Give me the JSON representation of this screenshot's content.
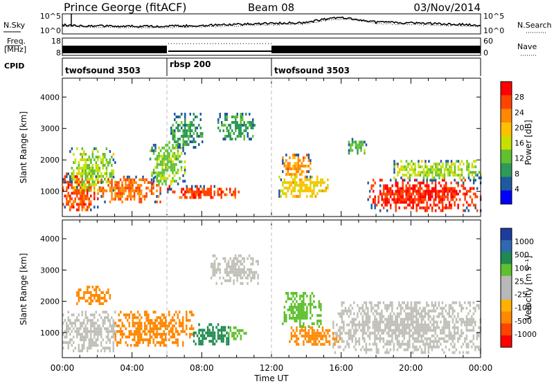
{
  "header": {
    "station": "Prince George (fitACF)",
    "beam": "Beam 08",
    "date": "03/Nov/2014"
  },
  "strips": {
    "nsky_label": "N.Sky",
    "nsky_ticks": [
      "10^5",
      "10^0"
    ],
    "nsearch_label": "N.Search",
    "freq_label_1": "Freq.",
    "freq_label_2": "[MHz]",
    "freq_ticks": [
      "18",
      "8"
    ],
    "nave_ticks": [
      "60",
      "0"
    ],
    "nave_label": "Nave",
    "cpid_label": "CPID",
    "cpid_segments": [
      {
        "label": "twofsound 3503",
        "start_h": 0,
        "end_h": 6
      },
      {
        "label": "rbsp 200",
        "start_h": 6,
        "end_h": 12
      },
      {
        "label": "twofsound 3503",
        "start_h": 12,
        "end_h": 24
      }
    ]
  },
  "axes": {
    "ylabel": "Slant Range [km]",
    "yticks": [
      "4000",
      "3000",
      "2000",
      "1000"
    ],
    "xticks": [
      "00:00",
      "04:00",
      "08:00",
      "12:00",
      "16:00",
      "20:00",
      "00:00"
    ],
    "xlabel": "Time UT"
  },
  "power_scale": {
    "label": "Power [dB]",
    "ticks": [
      "28",
      "24",
      "20",
      "16",
      "12",
      "8",
      "4"
    ],
    "colors": [
      "#ff0000",
      "#ff4400",
      "#ff8800",
      "#ffc000",
      "#c8e000",
      "#60c030",
      "#2e9a5a",
      "#1e5aa0",
      "#0000ff"
    ]
  },
  "velocity_scale": {
    "label": "Velocity [m s⁻¹]",
    "ticks": [
      "1000",
      "500",
      "100",
      "25",
      "-25",
      "-100",
      "-500",
      "-1000"
    ],
    "colors": [
      "#1e3ca0",
      "#2e6ab0",
      "#1e8a50",
      "#60c030",
      "#b8b8b8",
      "#b8b8b8",
      "#ffb000",
      "#ff8800",
      "#ff4400",
      "#ff0000"
    ]
  },
  "chart_data": [
    {
      "type": "heatmap",
      "title": "Power",
      "x_unit": "hours UT",
      "xlim": [
        0,
        24
      ],
      "ylim": [
        200,
        4600
      ],
      "regions": [
        {
          "t0": 0.0,
          "t1": 2.0,
          "r0": 400,
          "r1": 1600,
          "value": 26
        },
        {
          "t0": 0.4,
          "t1": 3.0,
          "r0": 1000,
          "r1": 2400,
          "value": 14
        },
        {
          "t0": 2.0,
          "t1": 5.6,
          "r0": 700,
          "r1": 1500,
          "value": 24
        },
        {
          "t0": 5.0,
          "t1": 7.0,
          "r0": 1200,
          "r1": 2600,
          "value": 12
        },
        {
          "t0": 6.0,
          "t1": 10.2,
          "r0": 800,
          "r1": 1200,
          "value": 26
        },
        {
          "t0": 6.2,
          "t1": 8.0,
          "r0": 2400,
          "r1": 3500,
          "value": 8
        },
        {
          "t0": 8.8,
          "t1": 11.0,
          "r0": 2700,
          "r1": 3500,
          "value": 8
        },
        {
          "t0": 12.6,
          "t1": 14.2,
          "r0": 1500,
          "r1": 2200,
          "value": 22
        },
        {
          "t0": 12.4,
          "t1": 15.2,
          "r0": 800,
          "r1": 1500,
          "value": 18
        },
        {
          "t0": 16.4,
          "t1": 17.4,
          "r0": 2200,
          "r1": 2700,
          "value": 10
        },
        {
          "t0": 17.5,
          "t1": 24.0,
          "r0": 400,
          "r1": 1400,
          "value": 28
        },
        {
          "t0": 19.0,
          "t1": 24.0,
          "r0": 1400,
          "r1": 2000,
          "value": 14
        }
      ]
    },
    {
      "type": "heatmap",
      "title": "Velocity",
      "x_unit": "hours UT",
      "xlim": [
        0,
        24
      ],
      "ylim": [
        200,
        4600
      ],
      "regions": [
        {
          "t0": 0.0,
          "t1": 3.0,
          "r0": 400,
          "r1": 1700,
          "value": 0
        },
        {
          "t0": 0.8,
          "t1": 2.8,
          "r0": 1900,
          "r1": 2500,
          "value": -200
        },
        {
          "t0": 3.0,
          "t1": 7.5,
          "r0": 600,
          "r1": 1700,
          "value": -300
        },
        {
          "t0": 7.5,
          "t1": 9.5,
          "r0": 600,
          "r1": 1300,
          "value": 150
        },
        {
          "t0": 9.5,
          "t1": 10.5,
          "r0": 800,
          "r1": 1200,
          "value": 60
        },
        {
          "t0": 8.5,
          "t1": 11.2,
          "r0": 2600,
          "r1": 3500,
          "value": 0
        },
        {
          "t0": 12.6,
          "t1": 14.8,
          "r0": 1200,
          "r1": 2300,
          "value": 80
        },
        {
          "t0": 13.0,
          "t1": 16.0,
          "r0": 600,
          "r1": 1200,
          "value": -150
        },
        {
          "t0": 15.5,
          "t1": 24.0,
          "r0": 400,
          "r1": 2000,
          "value": 0
        }
      ]
    }
  ]
}
